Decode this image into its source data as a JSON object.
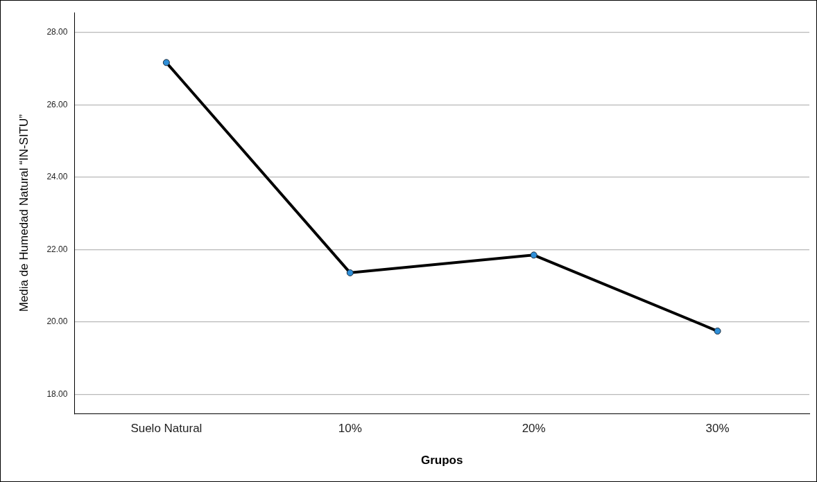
{
  "chart_data": {
    "type": "line",
    "xlabel": "Grupos",
    "ylabel": "Media de Humedad Natural “IN-SITU”",
    "categories": [
      "Suelo Natural",
      "10%",
      "20%",
      "30%"
    ],
    "series": [
      {
        "color": "#000000",
        "values": [
          27.17,
          21.36,
          21.85,
          19.75
        ]
      }
    ],
    "ylim": [
      17.47,
      28.55
    ],
    "yticks": [
      {
        "value": 18,
        "label": "18.00"
      },
      {
        "value": 20,
        "label": "20.00"
      },
      {
        "value": 22,
        "label": "22.00"
      },
      {
        "value": 24,
        "label": "24.00"
      },
      {
        "value": 26,
        "label": "26.00"
      },
      {
        "value": 28,
        "label": "28.00"
      }
    ],
    "grid": "y",
    "legend": false,
    "marker": "circle",
    "line_style": "solid"
  }
}
